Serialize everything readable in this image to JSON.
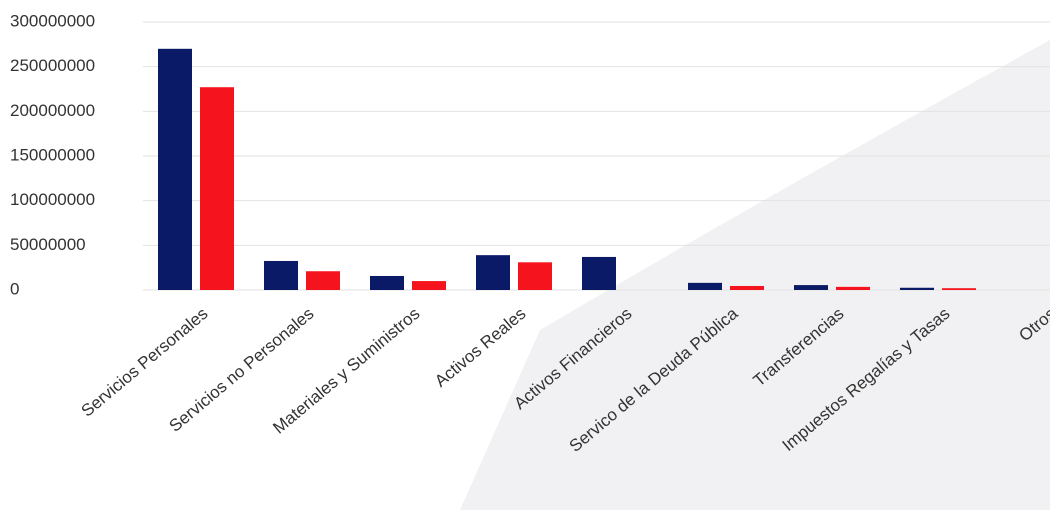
{
  "chart_data": {
    "type": "bar",
    "categories": [
      "Servicios Personales",
      "Servicios no Personales",
      "Materiales y Suministros",
      "Activos Reales",
      "Activos Financieros",
      "Servico de la Deuda Pública",
      "Transferencias",
      "Impuestos Regalías y Tasas",
      "Otros"
    ],
    "series": [
      {
        "color": "#0b1a66",
        "values": [
          270000000,
          32500000,
          15700000,
          39000000,
          37000000,
          8000000,
          5500000,
          2500000,
          0
        ]
      },
      {
        "color": "#f5141e",
        "values": [
          227000000,
          21000000,
          10000000,
          31000000,
          0,
          4500000,
          3500000,
          2000000,
          0
        ]
      }
    ],
    "ylim": [
      0,
      300000000
    ],
    "yticks": [
      0,
      50000000,
      100000000,
      150000000,
      200000000,
      250000000,
      300000000
    ],
    "grid": true
  }
}
